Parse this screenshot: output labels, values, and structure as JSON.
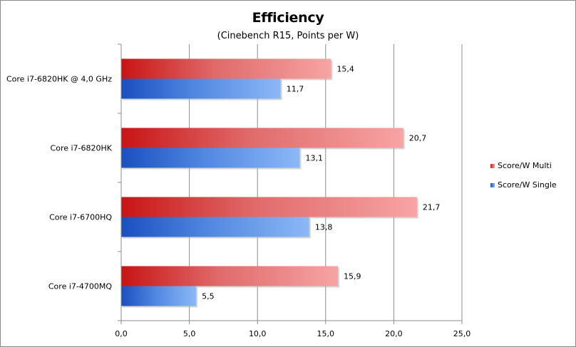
{
  "chart_data": {
    "type": "bar",
    "orientation": "horizontal",
    "title": "Efficiency",
    "subtitle": "(Cinebench R15, Points per W)",
    "categories": [
      "Core i7-6820HK @ 4,0 GHz",
      "Core i7-6820HK",
      "Core i7-6700HQ",
      "Core i7-4700MQ"
    ],
    "series": [
      {
        "name": "Score/W Multi",
        "values": [
          15.4,
          20.7,
          21.7,
          15.9
        ],
        "labels": [
          "15,4",
          "20,7",
          "21,7",
          "15,9"
        ],
        "color": "#d42020"
      },
      {
        "name": "Score/W Single",
        "values": [
          11.7,
          13.1,
          13.8,
          5.5
        ],
        "labels": [
          "11,7",
          "13,1",
          "13,8",
          "5,5"
        ],
        "color": "#1f5bcc"
      }
    ],
    "xlim": [
      0,
      25
    ],
    "xticks": [
      0,
      5,
      10,
      15,
      20,
      25
    ],
    "xtick_labels": [
      "0,0",
      "5,0",
      "10,0",
      "15,0",
      "20,0",
      "25,0"
    ],
    "grid": "vertical",
    "legend": "right"
  }
}
